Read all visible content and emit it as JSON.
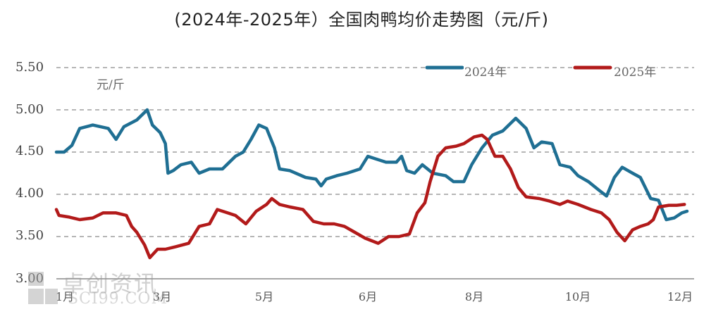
{
  "chart_data": {
    "type": "line",
    "title": "(2024年-2025年）全国肉鸭均价走势图（元/斤)",
    "ylabel": "元/斤",
    "xlabel": "",
    "ylim": [
      3.0,
      5.5
    ],
    "yticks": [
      "5.50",
      "5.00",
      "4.50",
      "4.00",
      "3.50",
      "3.00"
    ],
    "xticks": [
      "1月",
      "3月",
      "5月",
      "6月",
      "8月",
      "10月",
      "12月"
    ],
    "grid": "horizontal dashed",
    "legend_position": "top-right, inline on top gridline",
    "series": [
      {
        "name": "2024年",
        "color": "#1f6f93",
        "points": [
          [
            1,
            4.5
          ],
          [
            1.15,
            4.5
          ],
          [
            1.3,
            4.58
          ],
          [
            1.45,
            4.78
          ],
          [
            1.7,
            4.82
          ],
          [
            2.0,
            4.78
          ],
          [
            2.15,
            4.65
          ],
          [
            2.3,
            4.8
          ],
          [
            2.55,
            4.88
          ],
          [
            2.75,
            5.0
          ],
          [
            2.85,
            4.82
          ],
          [
            3.0,
            4.73
          ],
          [
            3.1,
            4.6
          ],
          [
            3.15,
            4.25
          ],
          [
            3.25,
            4.28
          ],
          [
            3.4,
            4.35
          ],
          [
            3.6,
            4.38
          ],
          [
            3.75,
            4.25
          ],
          [
            3.95,
            4.3
          ],
          [
            4.2,
            4.3
          ],
          [
            4.45,
            4.45
          ],
          [
            4.6,
            4.5
          ],
          [
            4.75,
            4.65
          ],
          [
            4.9,
            4.82
          ],
          [
            5.05,
            4.78
          ],
          [
            5.2,
            4.55
          ],
          [
            5.3,
            4.3
          ],
          [
            5.5,
            4.28
          ],
          [
            5.8,
            4.2
          ],
          [
            6.0,
            4.18
          ],
          [
            6.1,
            4.1
          ],
          [
            6.2,
            4.18
          ],
          [
            6.4,
            4.22
          ],
          [
            6.6,
            4.25
          ],
          [
            6.85,
            4.3
          ],
          [
            7.0,
            4.45
          ],
          [
            7.15,
            4.42
          ],
          [
            7.35,
            4.38
          ],
          [
            7.55,
            4.38
          ],
          [
            7.65,
            4.45
          ],
          [
            7.75,
            4.28
          ],
          [
            7.9,
            4.25
          ],
          [
            8.05,
            4.35
          ],
          [
            8.25,
            4.25
          ],
          [
            8.5,
            4.22
          ],
          [
            8.65,
            4.15
          ],
          [
            8.85,
            4.15
          ],
          [
            9.0,
            4.35
          ],
          [
            9.2,
            4.55
          ],
          [
            9.4,
            4.7
          ],
          [
            9.6,
            4.75
          ],
          [
            9.85,
            4.9
          ],
          [
            10.05,
            4.78
          ],
          [
            10.2,
            4.55
          ],
          [
            10.35,
            4.62
          ],
          [
            10.55,
            4.6
          ],
          [
            10.7,
            4.35
          ],
          [
            10.9,
            4.32
          ],
          [
            11.05,
            4.22
          ],
          [
            11.25,
            4.15
          ],
          [
            11.45,
            4.05
          ],
          [
            11.6,
            3.98
          ],
          [
            11.75,
            4.2
          ],
          [
            11.9,
            4.32
          ],
          [
            12.1,
            4.25
          ],
          [
            12.25,
            4.2
          ],
          [
            12.45,
            3.95
          ],
          [
            12.6,
            3.93
          ],
          [
            12.75,
            3.7
          ],
          [
            12.9,
            3.72
          ],
          [
            13.05,
            3.78
          ],
          [
            13.15,
            3.8
          ]
        ]
      },
      {
        "name": "2025年",
        "color": "#b21a1a",
        "points": [
          [
            1,
            3.82
          ],
          [
            1.05,
            3.75
          ],
          [
            1.25,
            3.73
          ],
          [
            1.45,
            3.7
          ],
          [
            1.7,
            3.72
          ],
          [
            1.9,
            3.78
          ],
          [
            2.15,
            3.78
          ],
          [
            2.35,
            3.75
          ],
          [
            2.45,
            3.62
          ],
          [
            2.55,
            3.55
          ],
          [
            2.7,
            3.4
          ],
          [
            2.8,
            3.25
          ],
          [
            2.95,
            3.35
          ],
          [
            3.1,
            3.35
          ],
          [
            3.3,
            3.38
          ],
          [
            3.55,
            3.42
          ],
          [
            3.75,
            3.62
          ],
          [
            3.95,
            3.65
          ],
          [
            4.1,
            3.82
          ],
          [
            4.3,
            3.78
          ],
          [
            4.45,
            3.75
          ],
          [
            4.65,
            3.65
          ],
          [
            4.85,
            3.8
          ],
          [
            5.05,
            3.88
          ],
          [
            5.15,
            3.95
          ],
          [
            5.3,
            3.88
          ],
          [
            5.5,
            3.85
          ],
          [
            5.75,
            3.82
          ],
          [
            5.95,
            3.68
          ],
          [
            6.15,
            3.65
          ],
          [
            6.35,
            3.65
          ],
          [
            6.55,
            3.62
          ],
          [
            6.75,
            3.55
          ],
          [
            6.95,
            3.48
          ],
          [
            7.2,
            3.42
          ],
          [
            7.4,
            3.5
          ],
          [
            7.6,
            3.5
          ],
          [
            7.8,
            3.53
          ],
          [
            7.95,
            3.78
          ],
          [
            8.1,
            3.9
          ],
          [
            8.2,
            4.15
          ],
          [
            8.35,
            4.45
          ],
          [
            8.5,
            4.55
          ],
          [
            8.7,
            4.57
          ],
          [
            8.85,
            4.6
          ],
          [
            9.05,
            4.68
          ],
          [
            9.2,
            4.7
          ],
          [
            9.3,
            4.65
          ],
          [
            9.45,
            4.45
          ],
          [
            9.6,
            4.45
          ],
          [
            9.75,
            4.3
          ],
          [
            9.9,
            4.08
          ],
          [
            10.05,
            3.97
          ],
          [
            10.3,
            3.95
          ],
          [
            10.5,
            3.92
          ],
          [
            10.7,
            3.88
          ],
          [
            10.85,
            3.92
          ],
          [
            11.05,
            3.88
          ],
          [
            11.3,
            3.82
          ],
          [
            11.5,
            3.78
          ],
          [
            11.65,
            3.7
          ],
          [
            11.8,
            3.55
          ],
          [
            11.95,
            3.45
          ],
          [
            12.1,
            3.58
          ],
          [
            12.25,
            3.62
          ],
          [
            12.4,
            3.65
          ],
          [
            12.5,
            3.7
          ],
          [
            12.6,
            3.85
          ],
          [
            12.8,
            3.87
          ],
          [
            12.95,
            3.87
          ],
          [
            13.1,
            3.88
          ]
        ]
      }
    ]
  },
  "annotations": {
    "watermark_cn": "卓创资讯",
    "watermark_en": "SCI99.COM"
  }
}
